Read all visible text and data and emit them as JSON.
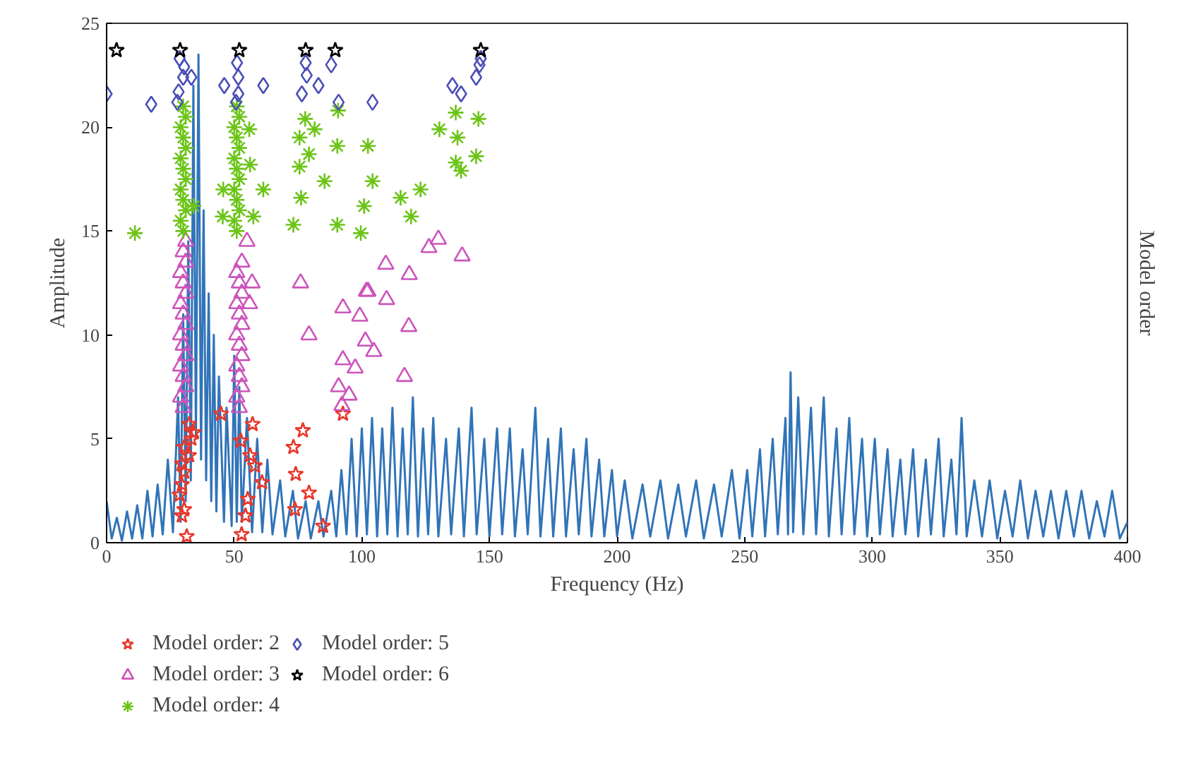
{
  "chart_data": {
    "type": "scatter",
    "xlabel": "Frequency (Hz)",
    "ylabel": "Amplitude",
    "y2label": "Model order",
    "xlim": [
      0,
      400
    ],
    "xticks": [
      0,
      50,
      100,
      150,
      200,
      250,
      300,
      350,
      400
    ],
    "ylim": [
      0,
      25
    ],
    "yticks": [
      0,
      5,
      10,
      15,
      20,
      25
    ],
    "grid": false,
    "legend": "bottom",
    "series": [
      {
        "type": "line",
        "color": "#3174b8",
        "x": [
          0,
          2,
          4,
          6,
          8,
          10,
          12,
          14,
          16,
          18,
          20,
          22,
          24,
          26,
          28,
          29,
          30,
          31,
          32,
          33,
          34,
          35,
          36,
          37,
          38,
          39,
          40,
          41,
          42,
          43,
          44,
          46,
          47,
          49,
          50,
          51,
          52,
          53,
          55,
          57,
          59,
          61,
          63,
          65,
          68,
          70,
          73,
          75,
          78,
          80,
          83,
          85,
          88,
          90,
          92,
          94,
          96,
          98,
          100,
          102,
          104,
          106,
          108,
          110,
          112,
          114,
          116,
          118,
          120,
          122,
          124,
          126,
          128,
          130,
          133,
          135,
          138,
          140,
          143,
          145,
          148,
          150,
          153,
          155,
          158,
          160,
          163,
          165,
          168,
          170,
          173,
          175,
          178,
          180,
          183,
          185,
          188,
          190,
          193,
          195,
          198,
          200,
          203,
          206,
          210,
          213,
          217,
          220,
          224,
          227,
          231,
          234,
          238,
          241,
          245,
          248,
          251,
          253,
          256,
          258,
          261,
          263,
          266,
          267,
          268,
          269,
          271,
          273,
          276,
          278,
          281,
          283,
          286,
          288,
          291,
          293,
          296,
          298,
          301,
          303,
          306,
          308,
          311,
          313,
          316,
          318,
          321,
          323,
          326,
          328,
          331,
          333,
          335,
          337,
          340,
          343,
          346,
          349,
          352,
          355,
          358,
          361,
          364,
          367,
          370,
          373,
          376,
          379,
          382,
          385,
          388,
          391,
          394,
          397,
          400
        ],
        "values": [
          2.0,
          0.2,
          1.2,
          0.1,
          1.5,
          0.2,
          1.8,
          0.2,
          2.5,
          0.3,
          2.8,
          0.4,
          4.0,
          0.5,
          7.0,
          1.0,
          11.0,
          2.0,
          14.5,
          3.0,
          22.0,
          5.0,
          23.5,
          4.0,
          16.0,
          3.0,
          12.0,
          2.0,
          10.0,
          1.5,
          8.0,
          1.0,
          6.5,
          0.8,
          9.0,
          1.0,
          7.5,
          1.0,
          6.0,
          0.5,
          5.0,
          0.5,
          4.0,
          0.4,
          3.0,
          0.3,
          2.5,
          0.2,
          2.0,
          0.2,
          2.0,
          0.3,
          2.5,
          0.3,
          3.5,
          0.4,
          5.0,
          0.3,
          5.5,
          0.4,
          6.0,
          0.3,
          5.5,
          0.4,
          6.5,
          0.3,
          5.5,
          0.4,
          7.0,
          0.3,
          5.5,
          0.4,
          6.0,
          0.3,
          5.0,
          0.4,
          5.5,
          0.3,
          6.5,
          0.4,
          5.0,
          0.3,
          5.5,
          0.4,
          5.5,
          0.3,
          4.5,
          0.4,
          6.5,
          0.3,
          5.0,
          0.3,
          5.5,
          0.3,
          4.5,
          0.4,
          5.0,
          0.3,
          4.0,
          0.3,
          3.5,
          0.3,
          3.0,
          0.2,
          2.8,
          0.3,
          3.0,
          0.2,
          2.8,
          0.3,
          3.0,
          0.2,
          2.8,
          0.3,
          3.5,
          0.2,
          3.5,
          0.3,
          4.5,
          0.3,
          5.0,
          0.4,
          6.0,
          0.4,
          8.2,
          0.5,
          7.0,
          0.4,
          6.5,
          0.4,
          7.0,
          0.3,
          5.5,
          0.4,
          6.0,
          0.4,
          5.0,
          0.3,
          5.0,
          0.4,
          4.5,
          0.3,
          4.0,
          0.4,
          4.5,
          0.3,
          4.0,
          0.4,
          5.0,
          0.3,
          4.0,
          0.4,
          6.0,
          0.3,
          3.0,
          0.3,
          3.0,
          0.2,
          2.5,
          0.3,
          3.0,
          0.2,
          2.5,
          0.3,
          2.5,
          0.2,
          2.5,
          0.3,
          2.5,
          0.2,
          2.0,
          0.3,
          2.5,
          0.2,
          1.0
        ]
      },
      {
        "name": "Model order: 2",
        "color": "#e8372a",
        "marker": "star",
        "x": [
          31.4,
          29.5,
          30.4,
          28.6,
          29.5,
          30.4,
          29.5,
          32.3,
          30.4,
          33.2,
          34.1,
          32.3,
          44.8,
          52.6,
          57.2,
          56.2,
          58.1,
          60.9,
          55.3,
          54.4,
          52.9,
          76.9,
          73.2,
          74.1,
          79.3,
          73.8,
          84.8,
          92.6
        ],
        "values": [
          0.3,
          1.3,
          1.6,
          2.3,
          2.8,
          3.4,
          3.8,
          4.2,
          4.6,
          5.0,
          5.3,
          5.7,
          6.2,
          4.9,
          5.7,
          4.2,
          3.7,
          2.9,
          2.1,
          1.3,
          0.4,
          5.4,
          4.6,
          3.3,
          2.4,
          1.6,
          0.8,
          6.2
        ]
      },
      {
        "name": "Model order: 3",
        "color": "#cc55bb",
        "marker": "triangle",
        "x": [
          30,
          29,
          31,
          30,
          29,
          31,
          30,
          29,
          31,
          30,
          29,
          31,
          30,
          29,
          31,
          30,
          31,
          52,
          51,
          53,
          52,
          51,
          53,
          52,
          51,
          53,
          52,
          51,
          53,
          52,
          51,
          53,
          55,
          57,
          56,
          76,
          79.3,
          92.6,
          99.2,
          101.8,
          101.4,
          104.7,
          92.6,
          97.4,
          90.9,
          95,
          92.2,
          130,
          126.3,
          139.3,
          109.4,
          118.6,
          102.4,
          109.7,
          118.4,
          116.7
        ],
        "values": [
          6.5,
          7,
          7.5,
          8,
          8.5,
          9,
          9.5,
          10,
          10.5,
          11,
          11.5,
          12,
          12.5,
          13,
          13.5,
          14,
          14.5,
          6.5,
          7,
          7.5,
          8,
          8.5,
          9,
          9.5,
          10,
          10.5,
          11,
          11.5,
          12,
          12.5,
          13,
          13.5,
          14.5,
          12.5,
          11.5,
          12.5,
          10.0,
          11.3,
          10.9,
          12.1,
          9.7,
          9.2,
          8.8,
          8.4,
          7.5,
          7.1,
          6.6,
          14.6,
          14.2,
          13.8,
          13.4,
          12.9,
          12.1,
          11.7,
          10.4,
          8.0
        ]
      },
      {
        "name": "Model order: 4",
        "color": "#6cc417",
        "marker": "cross",
        "x": [
          30,
          29,
          31,
          30,
          29,
          31,
          30,
          29,
          31,
          30,
          29,
          31,
          30,
          51,
          50,
          52,
          51,
          50,
          52,
          51,
          50,
          52,
          51,
          50,
          52,
          51,
          11.1,
          34.1,
          55.9,
          56.2,
          61.4,
          57.5,
          45.7,
          45.5,
          77.8,
          81.5,
          75.6,
          79.3,
          75.6,
          85.4,
          76.2,
          73.2,
          90.7,
          90.4,
          102.4,
          104.2,
          100.9,
          99.6,
          90.4,
          136.8,
          145.7,
          130.4,
          137.5,
          144.8,
          136.8,
          138.9,
          123,
          115.2,
          119.3
        ],
        "values": [
          15,
          15.5,
          16,
          16.5,
          17,
          17.5,
          18,
          18.5,
          19,
          19.5,
          20,
          20.5,
          21,
          15,
          15.5,
          16,
          16.5,
          17,
          17.5,
          18,
          18.5,
          19,
          19.5,
          20,
          20.5,
          21,
          14.9,
          16.2,
          19.9,
          18.2,
          17.0,
          15.7,
          17.0,
          15.7,
          20.4,
          19.9,
          19.5,
          18.7,
          18.1,
          17.4,
          16.6,
          15.3,
          20.8,
          19.1,
          19.1,
          17.4,
          16.2,
          14.9,
          15.3,
          20.7,
          20.4,
          19.9,
          19.5,
          18.6,
          18.3,
          17.9,
          17.0,
          16.6,
          15.7
        ]
      },
      {
        "name": "Model order: 5",
        "color": "#4a4fb5",
        "marker": "diamond",
        "x": [
          0,
          17.5,
          27.7,
          28.6,
          30.4,
          30,
          33.2,
          28.2,
          46.1,
          51.1,
          51.6,
          51.6,
          50.7,
          61.4,
          78,
          78.4,
          76.5,
          83,
          88,
          90.9,
          104.2,
          135.5,
          138.9,
          144.8,
          146.1,
          146.6
        ],
        "values": [
          21.6,
          21.1,
          21.2,
          23.3,
          22.9,
          22.4,
          22.4,
          21.7,
          22.0,
          23.1,
          22.4,
          21.6,
          21.2,
          22.0,
          23.1,
          22.5,
          21.6,
          22.0,
          23.0,
          21.2,
          21.2,
          22.0,
          21.6,
          22.4,
          23.0,
          23.3
        ]
      },
      {
        "name": "Model order: 6",
        "color": "#000000",
        "marker": "star",
        "x": [
          3.9,
          28.8,
          52,
          78,
          89.6,
          146.6
        ],
        "values": [
          23.7,
          23.7,
          23.7,
          23.7,
          23.7,
          23.7
        ]
      }
    ]
  }
}
